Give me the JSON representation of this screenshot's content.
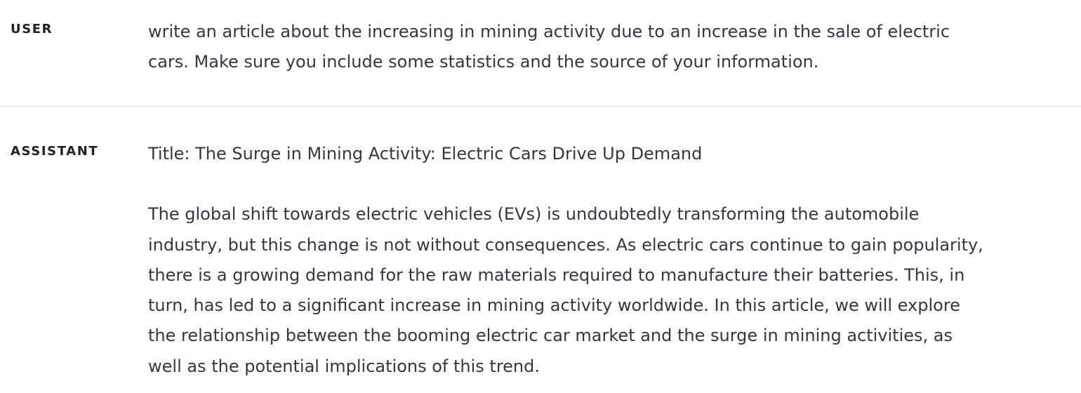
{
  "messages": [
    {
      "role": "USER",
      "lines": [
        "write an article about the increasing in mining activity due to an increase in the sale of electric",
        "cars. Make sure you include some statistics and the source of your information."
      ]
    },
    {
      "role": "ASSISTANT",
      "title_line": "Title: The Surge in Mining Activity: Electric Cars Drive Up Demand",
      "paragraph_lines": [
        "The global shift towards electric vehicles (EVs) is undoubtedly transforming the automobile",
        "industry, but this change is not without consequences. As electric cars continue to gain popularity,",
        "there is a growing demand for the raw materials required to manufacture their batteries. This, in",
        "turn, has led to a significant increase in mining activity worldwide. In this article, we will explore",
        "the relationship between the booming electric car market and the surge in mining activities, as",
        "well as the potential implications of this trend."
      ]
    }
  ]
}
